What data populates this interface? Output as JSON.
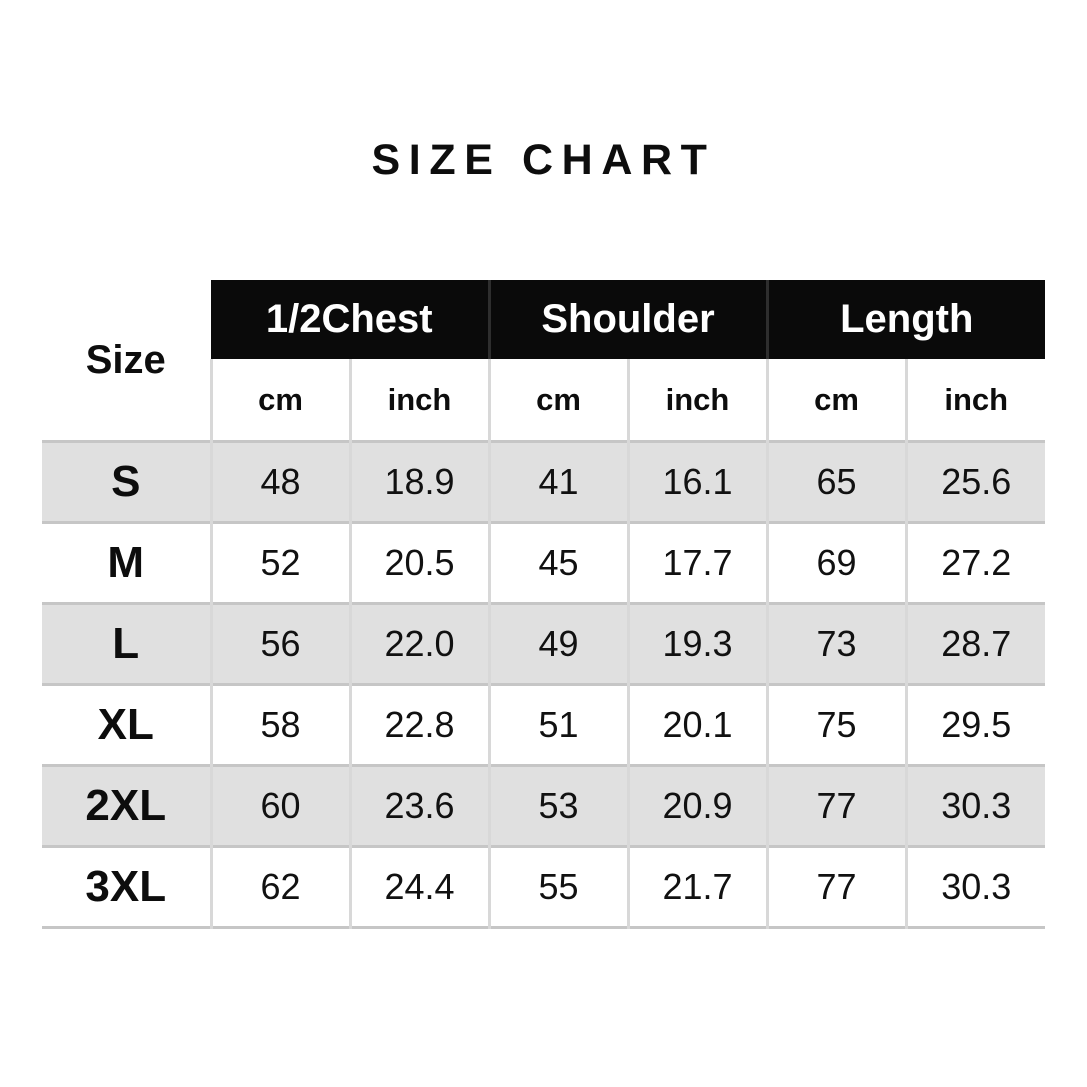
{
  "title": "SIZE CHART",
  "table": {
    "size_col_header": "Size",
    "groups": [
      {
        "label": "1/2Chest"
      },
      {
        "label": "Shoulder"
      },
      {
        "label": "Length"
      }
    ],
    "unit_headers": [
      "cm",
      "inch",
      "cm",
      "inch",
      "cm",
      "inch"
    ],
    "rows": [
      {
        "size": "S",
        "values": [
          "48",
          "18.9",
          "41",
          "16.1",
          "65",
          "25.6"
        ]
      },
      {
        "size": "M",
        "values": [
          "52",
          "20.5",
          "45",
          "17.7",
          "69",
          "27.2"
        ]
      },
      {
        "size": "L",
        "values": [
          "56",
          "22.0",
          "49",
          "19.3",
          "73",
          "28.7"
        ]
      },
      {
        "size": "XL",
        "values": [
          "58",
          "22.8",
          "51",
          "20.1",
          "75",
          "29.5"
        ]
      },
      {
        "size": "2XL",
        "values": [
          "60",
          "23.6",
          "53",
          "20.9",
          "77",
          "30.3"
        ]
      },
      {
        "size": "3XL",
        "values": [
          "62",
          "24.4",
          "55",
          "21.7",
          "77",
          "30.3"
        ]
      }
    ],
    "colors": {
      "header_bg": "#0a0a0a",
      "header_text": "#ffffff",
      "stripe_bg": "#e0e0e0",
      "row_border": "#c6c6c6",
      "col_separator": "#d8d8d8",
      "header_group_separator": "#2e2e2e",
      "text": "#0d0d0d",
      "page_bg": "#ffffff"
    }
  },
  "chart_data": {
    "type": "table",
    "title": "SIZE CHART",
    "column_groups": [
      "1/2Chest",
      "Shoulder",
      "Length"
    ],
    "columns": [
      "Size",
      "1/2Chest cm",
      "1/2Chest inch",
      "Shoulder cm",
      "Shoulder inch",
      "Length cm",
      "Length inch"
    ],
    "rows": [
      [
        "S",
        48,
        18.9,
        41,
        16.1,
        65,
        25.6
      ],
      [
        "M",
        52,
        20.5,
        45,
        17.7,
        69,
        27.2
      ],
      [
        "L",
        56,
        22.0,
        49,
        19.3,
        73,
        28.7
      ],
      [
        "XL",
        58,
        22.8,
        51,
        20.1,
        75,
        29.5
      ],
      [
        "2XL",
        60,
        23.6,
        53,
        20.9,
        77,
        30.3
      ],
      [
        "3XL",
        62,
        24.4,
        55,
        21.7,
        77,
        30.3
      ]
    ]
  }
}
